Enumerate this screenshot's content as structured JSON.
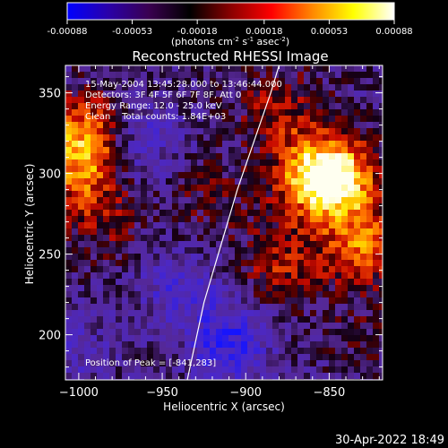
{
  "chart_data": {
    "type": "heatmap",
    "title": "Reconstructed RHESSI Image",
    "colorbar": {
      "ticks": [
        "-0.00088",
        "-0.00053",
        "-0.00018",
        "0.00018",
        "0.00053",
        "0.00088"
      ],
      "range": [
        -0.00088,
        0.00088
      ],
      "colors": [
        "#0000ff",
        "#2a00aa",
        "#3a0050",
        "#000000",
        "#8a0000",
        "#ff0000",
        "#ff8800",
        "#ffff00",
        "#ffffff"
      ]
    },
    "xlabel": "Heliocentric X (arcsec)",
    "ylabel": "Heliocentric Y (arcsec)",
    "xlim": [
      -1008,
      -818
    ],
    "ylim": [
      172,
      367
    ],
    "xticks": [
      -1000,
      -950,
      -900,
      -850
    ],
    "yticks": [
      200,
      250,
      300,
      350
    ],
    "annotations": [
      "15-May-2004 13:45:28.000 to 13:46:44.000",
      "Detectors: 3F 4F 5F 6F 7F 8F, Att 0",
      "Energy Range: 12.0 - 25.0 keV",
      "Clean    Total counts: 1.84E+03"
    ],
    "peak_label": "Position of Peak = [-841,283]",
    "peak": [
      -841,
      283
    ],
    "limb": [
      [
        -880,
        367
      ],
      [
        -885,
        350
      ],
      [
        -895,
        320
      ],
      [
        -905,
        290
      ],
      [
        -915,
        255
      ],
      [
        -925,
        220
      ],
      [
        -935,
        172
      ]
    ],
    "bright_regions": [
      {
        "x": -845,
        "y": 295,
        "value": 0.00088
      },
      {
        "x": -860,
        "y": 300,
        "value": 0.0007
      },
      {
        "x": -830,
        "y": 255,
        "value": 0.0006
      },
      {
        "x": -878,
        "y": 245,
        "value": 0.0004
      },
      {
        "x": -995,
        "y": 325,
        "value": 0.00065
      },
      {
        "x": -1000,
        "y": 300,
        "value": 0.0005
      },
      {
        "x": -985,
        "y": 270,
        "value": 0.00025
      },
      {
        "x": -880,
        "y": 340,
        "value": 0.00035
      },
      {
        "x": -920,
        "y": 285,
        "value": 0.0002
      },
      {
        "x": -830,
        "y": 200,
        "value": 0.00015
      },
      {
        "x": -940,
        "y": 230,
        "value": -0.0003
      },
      {
        "x": -910,
        "y": 195,
        "value": -0.0005
      },
      {
        "x": -965,
        "y": 320,
        "value": -0.00035
      },
      {
        "x": -1000,
        "y": 190,
        "value": -0.0002
      }
    ]
  },
  "footer": {
    "timestamp": "30-Apr-2022 18:49"
  },
  "colorbar_unit": {
    "text": "(photons cm-2 s-1 asec-2)"
  }
}
